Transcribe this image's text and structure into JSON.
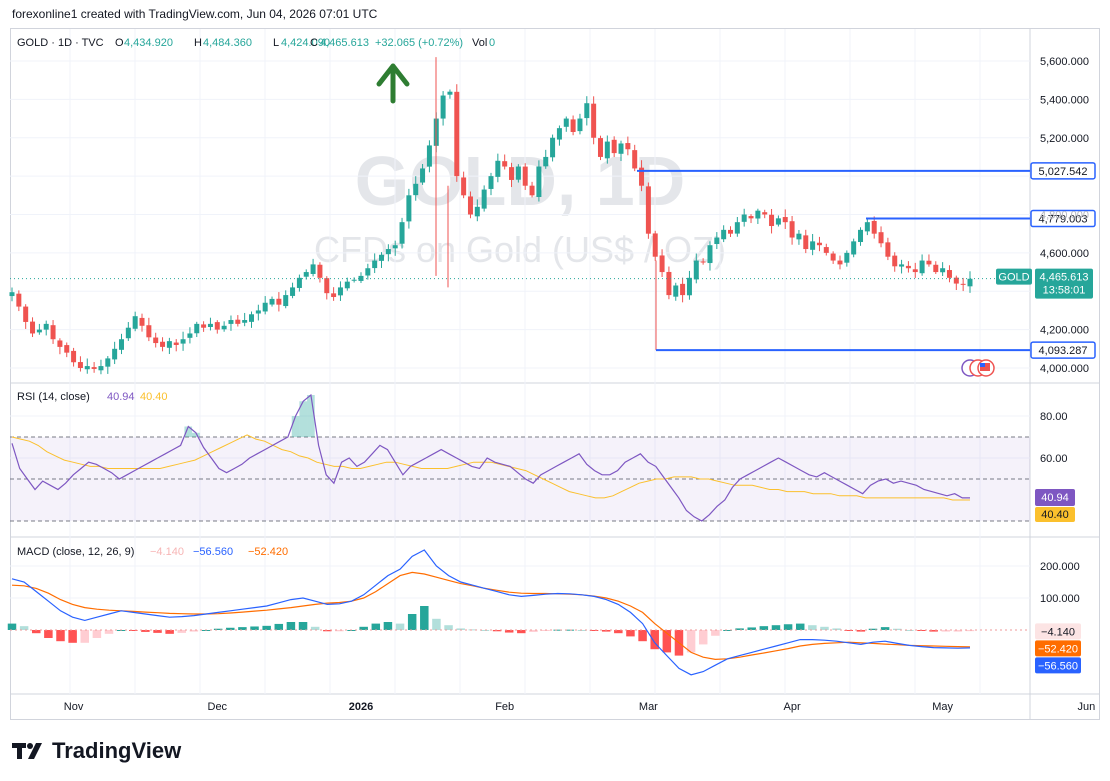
{
  "credit": "forexonline1 created with TradingView.com, Jun 04, 2026 07:01 UTC",
  "legend": {
    "symbol": "GOLD · 1D · TVC",
    "o_label": "O",
    "o": "4,434.920",
    "h_label": "H",
    "h": "4,484.360",
    "l_label": "L",
    "l": "4,424.090",
    "c_label": "C",
    "c": "4,465.613",
    "change": "+32.065 (+0.72%)",
    "vol_label": "Vol",
    "vol": "0"
  },
  "watermark": {
    "line1": "GOLD, 1D",
    "line2": "CFDs on Gold (US$ / OZ)"
  },
  "price_axis": [
    "5,600.000",
    "5,400.000",
    "5,200.000",
    "4,600.000",
    "4,200.000",
    "4,000.000"
  ],
  "price_axis_values": [
    5600,
    5400,
    5200,
    4600,
    4200,
    4000
  ],
  "price_axis_faded": {
    "label": "4,800.000",
    "value": 4800
  },
  "levels": [
    {
      "label": "5,027.542",
      "value": 5027.542
    },
    {
      "label": "4,779.003",
      "value": 4779.003
    },
    {
      "label": "4,093.287",
      "value": 4093.287
    }
  ],
  "current_tag": {
    "symbol": "GOLD",
    "price": "4,465.613",
    "countdown": "13:58:01",
    "value": 4465.613
  },
  "rsi": {
    "title": "RSI (14, close)",
    "value": "40.94",
    "ma": "40.40",
    "axis": [
      "80.00",
      "60.00"
    ],
    "axis_values": [
      80,
      60
    ],
    "upper": 70,
    "mid": 50,
    "lower": 30,
    "value_num": 40.94,
    "ma_num": 40.4
  },
  "macd": {
    "title": "MACD (close, 12, 26, 9)",
    "hist": "−4.140",
    "macd": "−56.560",
    "signal": "−52.420",
    "axis": [
      "200.000",
      "100.000"
    ],
    "axis_values": [
      200,
      100
    ],
    "hist_tag": "−4.140",
    "signal_tag": "−52.420",
    "macd_tag": "−56.560",
    "hist_num": -4.14,
    "signal_num": -52.42,
    "macd_num": -56.56
  },
  "time_axis": [
    "Nov",
    "Dec",
    "2026",
    "Feb",
    "Mar",
    "Apr",
    "May",
    "Jun"
  ],
  "time_axis_index": [
    9,
    30,
    51,
    72,
    93,
    114,
    136,
    157
  ],
  "colors": {
    "up": "#26a69a",
    "down": "#ef5350",
    "level": "#2962ff",
    "rsi": "#7e57c2",
    "rsi_ma": "#fbc02d",
    "macd": "#2962ff",
    "signal": "#ff6d00",
    "arrow": "#2e7d32"
  },
  "branding": "TradingView",
  "chart_data": {
    "type": "candlestick",
    "title": "GOLD · 1D · TVC",
    "ylim": [
      3950,
      5650
    ],
    "series": [
      {
        "name": "GOLD",
        "ohlc_close": [
          4395,
          4320,
          4240,
          4180,
          4200,
          4230,
          4150,
          4110,
          4080,
          4030,
          4000,
          4010,
          3995,
          4010,
          4050,
          4100,
          4150,
          4210,
          4270,
          4220,
          4160,
          4130,
          4110,
          4140,
          4120,
          4150,
          4180,
          4230,
          4210,
          4230,
          4200,
          4220,
          4250,
          4230,
          4250,
          4280,
          4300,
          4340,
          4360,
          4330,
          4380,
          4420,
          4470,
          4500,
          4540,
          4470,
          4390,
          4370,
          4420,
          4450,
          4460,
          4480,
          4520,
          4560,
          4590,
          4620,
          4640,
          4760,
          4900,
          4960,
          5040,
          5160,
          5300,
          5420,
          5440,
          5000,
          4900,
          4800,
          4840,
          4930,
          5000,
          5080,
          5050,
          4980,
          5050,
          4950,
          4900,
          5050,
          5100,
          5200,
          5250,
          5300,
          5230,
          5300,
          5380,
          5200,
          5100,
          5180,
          5120,
          5170,
          5140,
          5040,
          4950,
          4700,
          4580,
          4500,
          4380,
          4430,
          4380,
          4470,
          4560,
          4550,
          4640,
          4680,
          4720,
          4700,
          4760,
          4800,
          4780,
          4820,
          4800,
          4740,
          4780,
          4760,
          4680,
          4700,
          4620,
          4660,
          4640,
          4600,
          4560,
          4540,
          4600,
          4660,
          4720,
          4760,
          4700,
          4650,
          4580,
          4530,
          4540,
          4520,
          4500,
          4560,
          4540,
          4500,
          4520,
          4470,
          4440,
          4434,
          4465
        ]
      }
    ],
    "rsi_series": [
      67,
      55,
      50,
      45,
      49,
      47,
      45,
      48,
      52,
      55,
      58,
      57,
      55,
      53,
      50,
      52,
      54,
      56,
      58,
      60,
      62,
      64,
      66,
      75,
      72,
      65,
      60,
      55,
      53,
      55,
      57,
      60,
      62,
      64,
      66,
      68,
      70,
      80,
      87,
      90,
      66,
      52,
      48,
      58,
      60,
      56,
      58,
      62,
      66,
      64,
      58,
      52,
      56,
      58,
      60,
      62,
      64,
      62,
      60,
      58,
      56,
      55,
      60,
      58,
      57,
      56,
      53,
      50,
      48,
      52,
      54,
      56,
      58,
      60,
      62,
      57,
      54,
      52,
      52,
      54,
      58,
      60,
      62,
      58,
      56,
      51,
      46,
      41,
      35,
      32,
      30,
      33,
      37,
      40,
      46,
      50,
      52,
      54,
      56,
      58,
      60,
      58,
      56,
      54,
      52,
      51,
      53,
      51,
      49,
      47,
      45,
      43,
      47,
      49,
      50,
      48,
      49,
      48,
      47,
      45,
      44,
      43,
      42,
      43,
      41,
      41
    ],
    "rsi_ma_series": [
      70,
      69,
      68,
      66,
      63,
      61,
      59,
      58,
      57,
      56,
      56,
      55,
      55,
      55,
      55,
      55,
      55,
      55,
      56,
      57,
      58,
      59,
      61,
      63,
      65,
      67,
      69,
      71,
      69,
      68,
      66,
      64,
      63,
      61,
      60,
      58,
      57,
      56,
      56,
      55,
      55,
      56,
      57,
      58,
      58,
      57,
      56,
      55,
      55,
      55,
      55,
      56,
      57,
      58,
      58,
      58,
      57,
      56,
      55,
      54,
      52,
      50,
      48,
      46,
      44,
      43,
      42,
      41,
      41,
      42,
      44,
      46,
      48,
      49,
      50,
      50,
      51,
      51,
      51,
      50,
      50,
      49,
      48,
      47,
      47,
      47,
      46,
      45,
      45,
      44,
      44,
      44,
      43,
      43,
      43,
      42,
      42,
      42,
      41,
      41,
      41,
      41,
      41,
      41,
      41,
      41,
      41,
      41,
      40,
      40,
      40
    ],
    "macd_series": [
      160,
      150,
      120,
      90,
      60,
      40,
      30,
      40,
      50,
      60,
      55,
      50,
      45,
      40,
      42,
      45,
      50,
      55,
      60,
      65,
      70,
      75,
      85,
      95,
      100,
      90,
      80,
      82,
      90,
      110,
      140,
      170,
      190,
      230,
      250,
      200,
      170,
      150,
      140,
      130,
      120,
      110,
      105,
      108,
      112,
      114,
      113,
      110,
      105,
      95,
      80,
      55,
      20,
      -40,
      -80,
      -120,
      -140,
      -130,
      -110,
      -90,
      -80,
      -70,
      -60,
      -50,
      -40,
      -30,
      -30,
      -32,
      -35,
      -40,
      -45,
      -38,
      -35,
      -42,
      -48,
      -52,
      -55,
      -56,
      -57,
      -56
    ],
    "signal_series": [
      140,
      138,
      130,
      115,
      95,
      80,
      70,
      65,
      62,
      60,
      58,
      56,
      54,
      52,
      51,
      50,
      50,
      51,
      53,
      56,
      59,
      62,
      66,
      70,
      75,
      80,
      84,
      86,
      90,
      100,
      120,
      145,
      170,
      180,
      175,
      165,
      155,
      145,
      138,
      130,
      124,
      118,
      115,
      114,
      114,
      113,
      112,
      110,
      106,
      100,
      90,
      75,
      55,
      20,
      -10,
      -40,
      -70,
      -85,
      -92,
      -90,
      -85,
      -78,
      -72,
      -65,
      -58,
      -50,
      -45,
      -42,
      -40,
      -38,
      -40,
      -42,
      -44,
      -46,
      -48,
      -49,
      -50,
      -51,
      -52,
      -52.42
    ]
  }
}
